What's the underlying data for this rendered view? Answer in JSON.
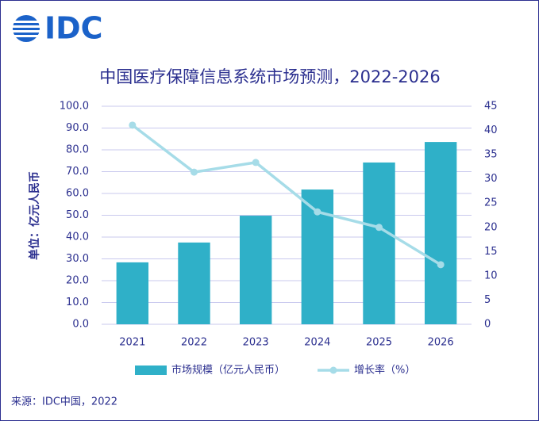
{
  "chart_data": {
    "type": "bar",
    "logo": "IDC",
    "title": "中国医疗保障信息系统市场预测，2022-2026",
    "y_label": "单位：亿元人民币",
    "source": "来源：IDC中国，2022",
    "categories": [
      "2021",
      "2022",
      "2023",
      "2024",
      "2025",
      "2026"
    ],
    "series": [
      {
        "name": "市场规模（亿元人民币）",
        "type": "bar",
        "color": "#2fb0c8",
        "values": [
          28.4,
          37.5,
          49.8,
          61.8,
          74.2,
          83.6
        ]
      },
      {
        "name": "增长率（%）",
        "type": "line",
        "axis": "y2",
        "color": "#a6dce8",
        "values": [
          41.1,
          31.4,
          33.4,
          23.2,
          20.0,
          12.3
        ]
      }
    ],
    "ylim": [
      0,
      100
    ],
    "yticks": [
      {
        "value": 0,
        "label": "0.0"
      },
      {
        "value": 10,
        "label": "10.0"
      },
      {
        "value": 20,
        "label": "20.0"
      },
      {
        "value": 30,
        "label": "30.0"
      },
      {
        "value": 40,
        "label": "40.0"
      },
      {
        "value": 50,
        "label": "50.0"
      },
      {
        "value": 60,
        "label": "60.0"
      },
      {
        "value": 70,
        "label": "70.0"
      },
      {
        "value": 80,
        "label": "80.0"
      },
      {
        "value": 90,
        "label": "90.0"
      },
      {
        "value": 100,
        "label": "100.0"
      }
    ],
    "y2lim": [
      0,
      45
    ],
    "y2ticks": [
      0,
      5,
      10,
      15,
      20,
      25,
      30,
      35,
      40,
      45
    ],
    "grid": true
  }
}
